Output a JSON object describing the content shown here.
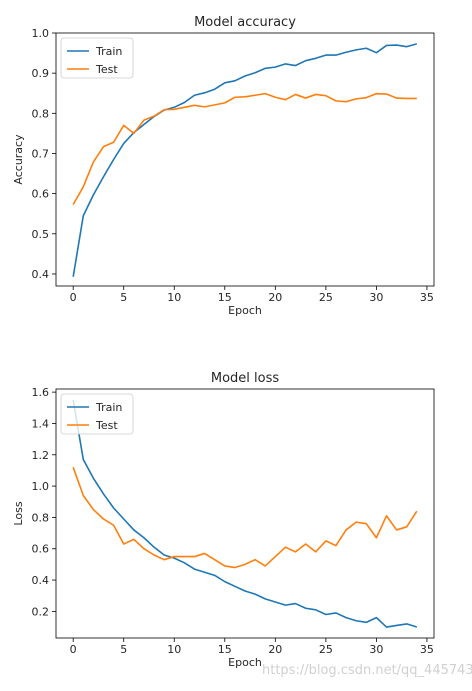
{
  "watermark": "https://blog.csdn.net/qq_44574333",
  "chart_data": [
    {
      "type": "line",
      "title": "Model accuracy",
      "xlabel": "Epoch",
      "ylabel": "Accuracy",
      "xlim": [
        -1.7,
        35.7
      ],
      "ylim": [
        0.37,
        1.0
      ],
      "xticks": [
        0,
        5,
        10,
        15,
        20,
        25,
        30,
        35
      ],
      "yticks": [
        0.4,
        0.5,
        0.6,
        0.7,
        0.8,
        0.9,
        1.0
      ],
      "ytick_labels": [
        "0.4",
        "0.5",
        "0.6",
        "0.7",
        "0.8",
        "0.9",
        "1.0"
      ],
      "grid": false,
      "legend_position": "upper-left",
      "x": [
        0,
        1,
        2,
        3,
        4,
        5,
        6,
        7,
        8,
        9,
        10,
        11,
        12,
        13,
        14,
        15,
        16,
        17,
        18,
        19,
        20,
        21,
        22,
        23,
        24,
        25,
        26,
        27,
        28,
        29,
        30,
        31,
        32,
        33,
        34
      ],
      "series": [
        {
          "name": "Train",
          "color": "#1f77b4",
          "values": [
            0.393,
            0.545,
            0.597,
            0.642,
            0.685,
            0.725,
            0.752,
            0.772,
            0.792,
            0.808,
            0.815,
            0.827,
            0.845,
            0.851,
            0.86,
            0.876,
            0.881,
            0.893,
            0.901,
            0.912,
            0.915,
            0.923,
            0.919,
            0.931,
            0.937,
            0.945,
            0.945,
            0.952,
            0.958,
            0.962,
            0.951,
            0.969,
            0.97,
            0.966,
            0.973
          ]
        },
        {
          "name": "Test",
          "color": "#ff7f0e",
          "values": [
            0.573,
            0.617,
            0.679,
            0.717,
            0.728,
            0.77,
            0.75,
            0.783,
            0.793,
            0.809,
            0.81,
            0.815,
            0.82,
            0.816,
            0.821,
            0.826,
            0.84,
            0.841,
            0.845,
            0.849,
            0.84,
            0.834,
            0.847,
            0.838,
            0.847,
            0.844,
            0.831,
            0.829,
            0.836,
            0.839,
            0.849,
            0.848,
            0.838,
            0.837,
            0.837
          ]
        }
      ]
    },
    {
      "type": "line",
      "title": "Model loss",
      "xlabel": "Epoch",
      "ylabel": "Loss",
      "xlim": [
        -1.7,
        35.7
      ],
      "ylim": [
        0.03,
        1.62
      ],
      "xticks": [
        0,
        5,
        10,
        15,
        20,
        25,
        30,
        35
      ],
      "yticks": [
        0.2,
        0.4,
        0.6,
        0.8,
        1.0,
        1.2,
        1.4,
        1.6
      ],
      "ytick_labels": [
        "0.2",
        "0.4",
        "0.6",
        "0.8",
        "1.0",
        "1.2",
        "1.4",
        "1.6"
      ],
      "grid": false,
      "legend_position": "upper-left",
      "x": [
        0,
        1,
        2,
        3,
        4,
        5,
        6,
        7,
        8,
        9,
        10,
        11,
        12,
        13,
        14,
        15,
        16,
        17,
        18,
        19,
        20,
        21,
        22,
        23,
        24,
        25,
        26,
        27,
        28,
        29,
        30,
        31,
        32,
        33,
        34
      ],
      "series": [
        {
          "name": "Train",
          "color": "#1f77b4",
          "values": [
            1.55,
            1.17,
            1.05,
            0.95,
            0.86,
            0.79,
            0.72,
            0.67,
            0.61,
            0.56,
            0.54,
            0.51,
            0.47,
            0.45,
            0.43,
            0.39,
            0.36,
            0.33,
            0.31,
            0.28,
            0.26,
            0.24,
            0.25,
            0.22,
            0.21,
            0.18,
            0.19,
            0.16,
            0.14,
            0.13,
            0.16,
            0.1,
            0.11,
            0.12,
            0.1
          ]
        },
        {
          "name": "Test",
          "color": "#ff7f0e",
          "values": [
            1.12,
            0.94,
            0.85,
            0.79,
            0.75,
            0.63,
            0.66,
            0.6,
            0.56,
            0.53,
            0.55,
            0.55,
            0.55,
            0.57,
            0.53,
            0.49,
            0.48,
            0.5,
            0.53,
            0.49,
            0.55,
            0.61,
            0.58,
            0.63,
            0.58,
            0.65,
            0.62,
            0.72,
            0.77,
            0.76,
            0.67,
            0.81,
            0.72,
            0.74,
            0.84
          ]
        }
      ]
    }
  ]
}
